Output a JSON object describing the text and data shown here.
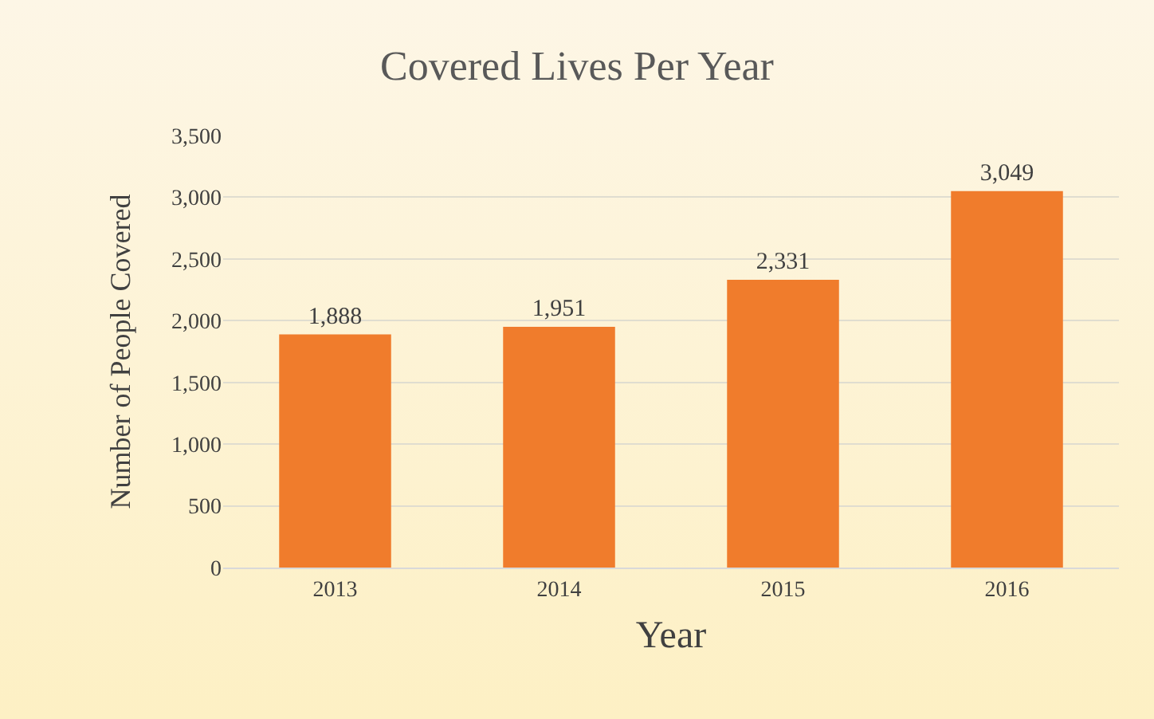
{
  "chart_data": {
    "type": "bar",
    "title": "Covered Lives Per Year",
    "xlabel": "Year",
    "ylabel": "Number of People Covered",
    "categories": [
      "2013",
      "2014",
      "2015",
      "2016"
    ],
    "values": [
      1888,
      1951,
      2331,
      3049
    ],
    "value_labels": [
      "1,888",
      "1,951",
      "2,331",
      "3,049"
    ],
    "color": "#f07c2c",
    "ylim": [
      0,
      3500
    ],
    "yticks": [
      0,
      500,
      {
        "value": 1000,
        "label": "1,000"
      },
      {
        "value": 1500,
        "label": "1,500"
      },
      {
        "value": 2000,
        "label": "2,000"
      },
      {
        "value": 2500,
        "label": "2,500"
      },
      {
        "value": 3000,
        "label": "3,000"
      },
      {
        "value": 3500,
        "label": "3,500"
      }
    ],
    "grid": "y"
  }
}
